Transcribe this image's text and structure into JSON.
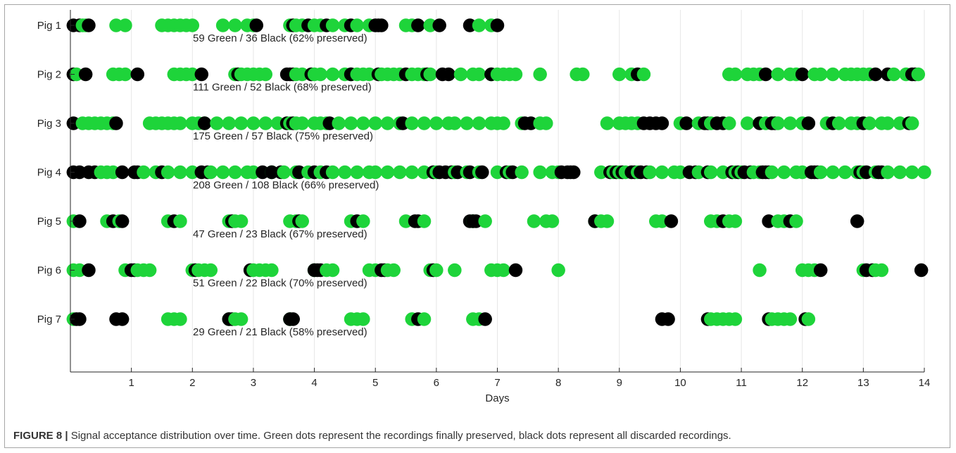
{
  "caption": {
    "label": "FIGURE 8 |",
    "text": " Signal acceptance distribution over time. Green dots represent the recordings finally preserved, black dots represent all discarded recordings."
  },
  "chart_data": {
    "type": "scatter",
    "title": "",
    "xlabel": "Days",
    "ylabel": "",
    "xlim": [
      0,
      14
    ],
    "xticks": [
      1,
      2,
      3,
      4,
      5,
      6,
      7,
      8,
      9,
      10,
      11,
      12,
      13,
      14
    ],
    "grid": "vertical",
    "legend": "none",
    "colors": {
      "preserved": "#1ed43a",
      "discarded": "#000000",
      "grid": "#e6e6e6",
      "axis": "#262626"
    },
    "rows": [
      {
        "label": "Pig 1",
        "summary": "59 Green / 36 Black   (62% preserved)",
        "green": [
          0.2,
          0.25,
          0.75,
          0.9,
          1.5,
          1.6,
          1.7,
          1.8,
          1.9,
          2.0,
          2.5,
          2.7,
          2.9,
          3.0,
          3.6,
          3.7,
          3.8,
          4.0,
          4.1,
          4.3,
          4.5,
          4.7,
          4.9,
          5.5,
          5.6,
          5.9,
          6.7,
          6.9
        ],
        "black": [
          0.05,
          0.15,
          0.3,
          3.05,
          3.65,
          3.9,
          4.2,
          4.6,
          5.0,
          5.05,
          5.1,
          5.7,
          6.05,
          6.55,
          7.0
        ]
      },
      {
        "label": "Pig 2",
        "summary": "111 Green / 52 Black   (68% preserved)",
        "green": [
          0.1,
          0.7,
          0.8,
          0.9,
          1.7,
          1.8,
          1.9,
          2.0,
          2.7,
          2.8,
          2.9,
          3.0,
          3.1,
          3.2,
          3.7,
          3.8,
          4.0,
          4.1,
          4.3,
          4.5,
          4.6,
          4.7,
          4.8,
          4.9,
          5.1,
          5.2,
          5.3,
          5.4,
          5.6,
          5.7,
          5.8,
          5.9,
          6.4,
          6.6,
          6.7,
          6.9,
          7.0,
          7.1,
          7.2,
          7.3,
          7.7,
          8.3,
          8.4,
          9.0,
          9.2,
          9.4,
          10.8,
          10.9,
          11.1,
          11.2,
          11.3,
          11.6,
          11.8,
          11.9,
          12.2,
          12.3,
          12.5,
          12.7,
          12.8,
          12.9,
          13.0,
          13.1,
          13.5,
          13.7,
          13.9
        ],
        "black": [
          0.05,
          0.25,
          1.1,
          2.15,
          2.75,
          3.55,
          3.6,
          3.65,
          3.95,
          4.6,
          5.05,
          5.5,
          5.85,
          6.1,
          6.2,
          6.9,
          9.3,
          11.4,
          12.0,
          13.2,
          13.4,
          13.8,
          13.85
        ]
      },
      {
        "label": "Pig 3",
        "summary": "175 Green / 57 Black   (75% preserved)",
        "green": [
          0.2,
          0.3,
          0.4,
          0.5,
          0.6,
          0.7,
          1.3,
          1.4,
          1.5,
          1.6,
          1.7,
          1.8,
          2.0,
          2.1,
          2.2,
          2.4,
          2.6,
          2.8,
          3.0,
          3.2,
          3.4,
          3.6,
          3.7,
          3.8,
          4.0,
          4.1,
          4.2,
          4.4,
          4.6,
          4.8,
          5.0,
          5.2,
          5.4,
          5.6,
          5.8,
          6.0,
          6.2,
          6.3,
          6.5,
          6.7,
          6.9,
          7.0,
          7.1,
          7.4,
          7.7,
          7.8,
          8.8,
          9.0,
          9.1,
          9.2,
          9.3,
          10.0,
          10.3,
          10.5,
          10.8,
          11.1,
          11.4,
          11.6,
          11.8,
          12.0,
          12.4,
          12.6,
          12.8,
          12.9,
          13.1,
          13.3,
          13.4,
          13.6,
          13.8
        ],
        "black": [
          0.05,
          0.75,
          2.2,
          3.55,
          3.65,
          4.25,
          5.45,
          7.45,
          7.55,
          9.4,
          9.5,
          9.6,
          9.7,
          10.1,
          10.4,
          10.45,
          10.6,
          10.7,
          11.3,
          11.5,
          11.55,
          12.1,
          12.5,
          13.0,
          13.75
        ]
      },
      {
        "label": "Pig 4",
        "summary": "208 Green / 108 Black   (66% preserved)",
        "green": [
          0.5,
          0.6,
          0.7,
          1.2,
          1.4,
          1.6,
          1.8,
          2.0,
          2.3,
          2.5,
          2.7,
          2.9,
          3.0,
          3.3,
          3.5,
          3.7,
          3.9,
          4.1,
          4.3,
          4.5,
          4.7,
          4.9,
          5.0,
          5.2,
          5.4,
          5.6,
          5.8,
          6.0,
          6.3,
          6.5,
          6.7,
          7.0,
          7.2,
          7.4,
          7.7,
          7.9,
          8.0,
          8.7,
          8.9,
          9.0,
          9.1,
          9.3,
          9.5,
          9.7,
          9.9,
          10.0,
          10.3,
          10.5,
          10.7,
          10.9,
          11.0,
          11.2,
          11.3,
          11.5,
          11.7,
          11.9,
          12.0,
          12.3,
          12.5,
          12.7,
          12.9,
          13.0,
          13.2,
          13.4,
          13.6,
          13.8,
          14.0
        ],
        "black": [
          0.05,
          0.15,
          0.3,
          0.4,
          0.85,
          1.05,
          1.1,
          1.5,
          2.15,
          2.25,
          3.15,
          3.3,
          3.45,
          3.75,
          4.0,
          4.2,
          5.95,
          6.05,
          6.15,
          6.25,
          6.35,
          6.55,
          6.75,
          7.15,
          7.25,
          8.05,
          8.15,
          8.2,
          8.25,
          8.85,
          8.95,
          9.05,
          9.2,
          9.25,
          9.35,
          9.45,
          10.15,
          10.25,
          10.45,
          10.85,
          10.95,
          11.05,
          11.15,
          11.35,
          11.4,
          11.45,
          12.15,
          12.2,
          12.25,
          12.95,
          13.05,
          13.25,
          13.3
        ]
      },
      {
        "label": "Pig 5",
        "summary": "47 Green / 23 Black   (67% preserved)",
        "green": [
          0.05,
          0.6,
          0.8,
          1.6,
          1.8,
          2.6,
          2.7,
          2.8,
          3.6,
          3.7,
          3.8,
          4.6,
          4.8,
          5.5,
          5.8,
          6.6,
          6.8,
          7.6,
          7.8,
          7.9,
          8.6,
          8.7,
          8.8,
          9.6,
          9.7,
          10.5,
          10.6,
          10.8,
          10.9,
          11.6,
          11.7,
          11.9
        ],
        "black": [
          0.15,
          0.7,
          0.85,
          1.7,
          2.65,
          3.75,
          4.7,
          5.65,
          5.7,
          6.55,
          6.6,
          6.65,
          8.6,
          9.85,
          10.7,
          11.45,
          11.8,
          12.9
        ]
      },
      {
        "label": "Pig 6",
        "summary": "51 Green / 22 Black   (70% preserved)",
        "green": [
          0.05,
          0.15,
          0.9,
          1.1,
          1.2,
          1.3,
          2.0,
          2.1,
          2.2,
          2.3,
          3.0,
          3.1,
          3.2,
          3.3,
          4.0,
          4.2,
          4.3,
          4.9,
          5.0,
          5.2,
          5.3,
          5.9,
          6.0,
          6.3,
          6.9,
          7.0,
          7.1,
          8.0,
          11.3,
          12.0,
          12.1,
          12.2,
          13.0,
          13.2,
          13.3
        ],
        "black": [
          0.3,
          1.0,
          1.05,
          2.05,
          2.95,
          4.0,
          4.05,
          4.1,
          5.1,
          5.15,
          5.95,
          7.3,
          12.3,
          13.05,
          13.15,
          13.95
        ]
      },
      {
        "label": "Pig 7",
        "summary": "29 Green / 21 Black   (58% preserved)",
        "green": [
          0.05,
          1.6,
          1.7,
          1.8,
          2.6,
          2.7,
          2.8,
          3.6,
          4.6,
          4.7,
          4.8,
          5.6,
          5.8,
          6.6,
          6.7,
          10.5,
          10.6,
          10.7,
          10.8,
          10.9,
          11.5,
          11.6,
          11.7,
          11.8,
          12.1
        ],
        "black": [
          0.1,
          0.15,
          0.75,
          0.85,
          2.6,
          2.65,
          3.6,
          3.65,
          5.7,
          6.8,
          9.7,
          9.8,
          10.45,
          11.45,
          12.05
        ]
      }
    ]
  }
}
